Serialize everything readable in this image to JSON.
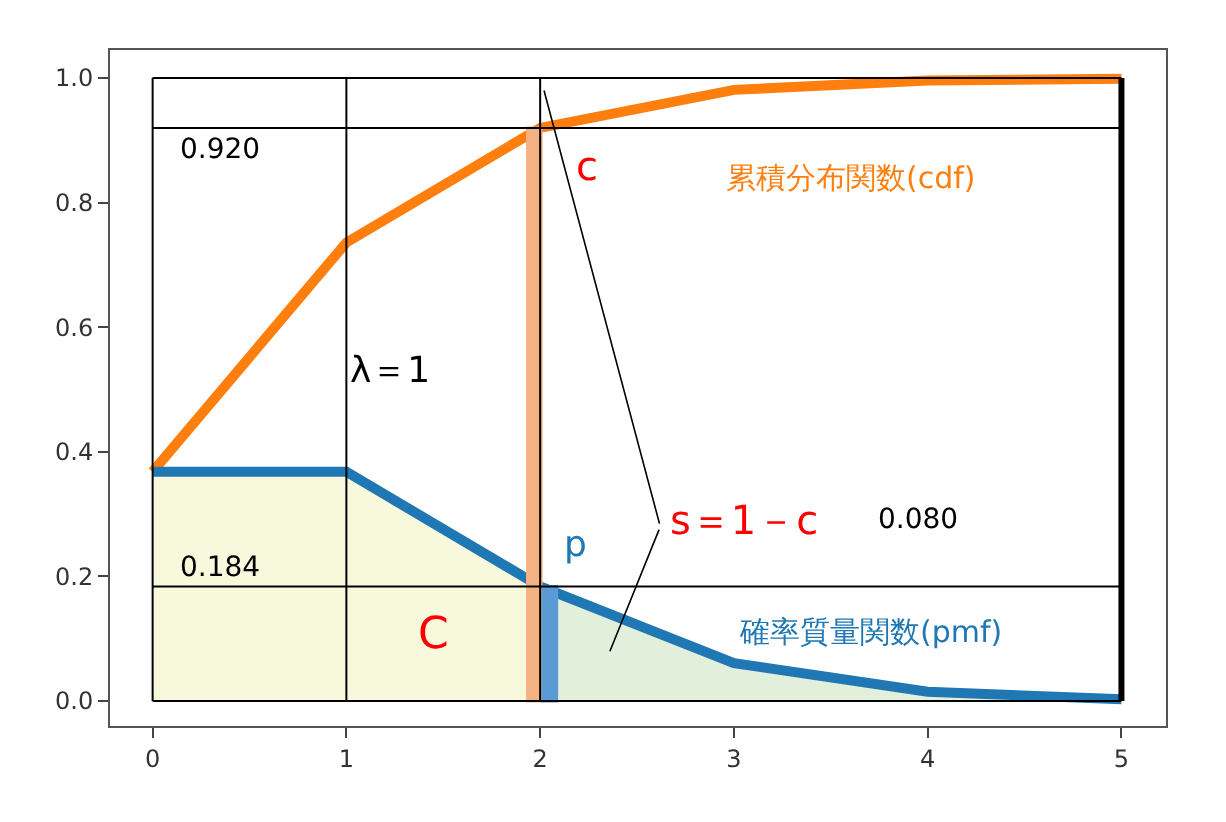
{
  "chart_data": {
    "type": "line",
    "x": [
      0,
      1,
      2,
      3,
      4,
      5
    ],
    "xlim": [
      -0.22,
      5.23
    ],
    "ylim": [
      -0.04,
      1.045
    ],
    "xticks": [
      0,
      1,
      2,
      3,
      4,
      5
    ],
    "yticks": [
      {
        "value": 0,
        "label": "0.0"
      },
      {
        "value": 0.2,
        "label": "0.2"
      },
      {
        "value": 0.4,
        "label": "0.4"
      },
      {
        "value": 0.6,
        "label": "0.6"
      },
      {
        "value": 0.8,
        "label": "0.8"
      },
      {
        "value": 1.0,
        "label": "1.0"
      }
    ],
    "legend": false,
    "marker": "none",
    "line_style": "solid",
    "series": [
      {
        "type": "area",
        "color": "#f8f8dc",
        "x": [
          0,
          1,
          2
        ],
        "values": [
          0.368,
          0.368,
          0.184
        ]
      },
      {
        "type": "area",
        "color": "#e2efda",
        "x": [
          2,
          3,
          4,
          5
        ],
        "values": [
          0.184,
          0.061,
          0.015,
          0.003
        ]
      },
      {
        "type": "bar",
        "color": "#f4b183",
        "x": [
          1.97
        ],
        "values": [
          0.92
        ]
      },
      {
        "type": "bar",
        "color": "#5b9bd5",
        "x": [
          2.05
        ],
        "values": [
          0.184
        ]
      },
      {
        "name": "累積分布関数(cdf)",
        "color": "#ff7f0e",
        "values": [
          0.368,
          0.736,
          0.92,
          0.981,
          0.996,
          0.999
        ]
      },
      {
        "name": "確率質量関数(pmf)",
        "color": "#1f77b4",
        "values": [
          0.368,
          0.368,
          0.184,
          0.061,
          0.015,
          0.003
        ]
      }
    ],
    "ref_lines": [
      {
        "axis": "y",
        "value": 0.92,
        "color": "#000000"
      },
      {
        "axis": "y",
        "value": 0.184,
        "color": "#000000"
      },
      {
        "axis": "y",
        "value": 0,
        "color": "#000000"
      },
      {
        "axis": "y",
        "value": 1.0,
        "color": "#000000"
      },
      {
        "axis": "x",
        "value": 0,
        "color": "#000000"
      },
      {
        "axis": "x",
        "value": 1,
        "color": "#000000"
      },
      {
        "axis": "x",
        "value": 2,
        "color": "#000000"
      },
      {
        "axis": "x",
        "value": 5,
        "color": "#000000"
      }
    ],
    "annotations": [
      "0.920",
      "0.184",
      "λ＝1",
      "c",
      "C",
      "p",
      "s＝1－c",
      "0.080"
    ]
  }
}
